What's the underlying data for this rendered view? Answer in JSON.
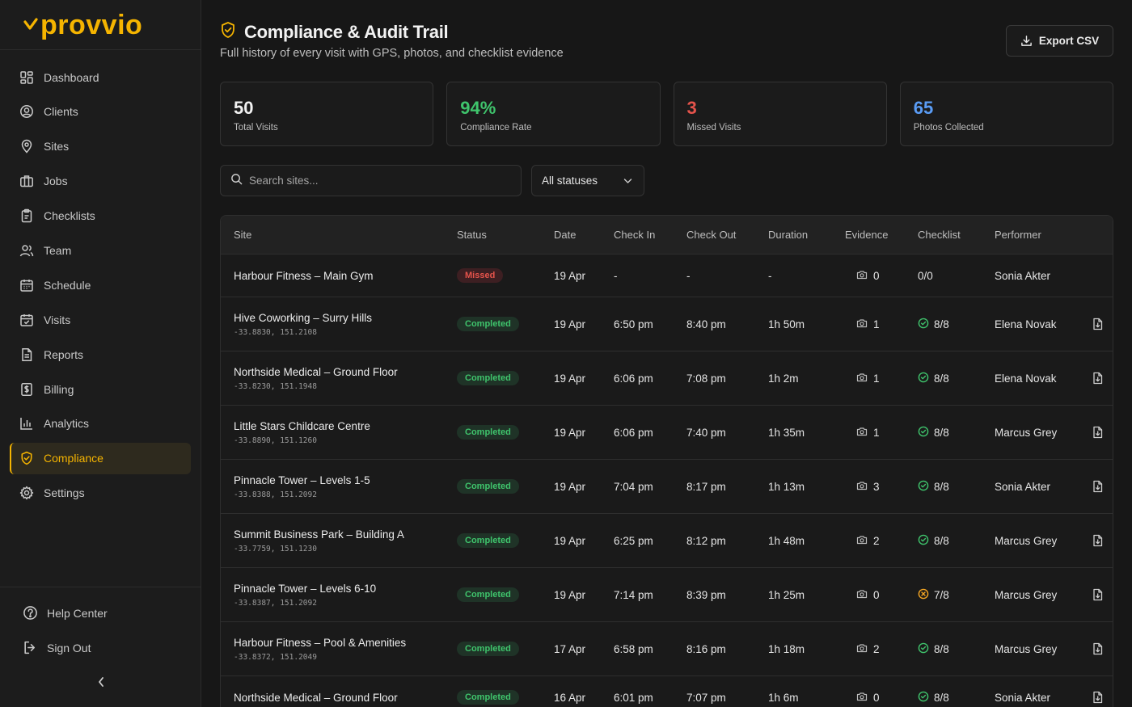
{
  "brand": {
    "name": "provvio",
    "color": "#f5b400"
  },
  "sidebar": {
    "items": [
      {
        "label": "Dashboard",
        "icon": "dashboard-icon"
      },
      {
        "label": "Clients",
        "icon": "user-circle-icon"
      },
      {
        "label": "Sites",
        "icon": "map-pin-icon"
      },
      {
        "label": "Jobs",
        "icon": "briefcase-icon"
      },
      {
        "label": "Checklists",
        "icon": "clipboard-icon"
      },
      {
        "label": "Team",
        "icon": "users-icon"
      },
      {
        "label": "Schedule",
        "icon": "calendar-icon"
      },
      {
        "label": "Visits",
        "icon": "calendar-check-icon"
      },
      {
        "label": "Reports",
        "icon": "file-text-icon"
      },
      {
        "label": "Billing",
        "icon": "dollar-file-icon"
      },
      {
        "label": "Analytics",
        "icon": "bar-chart-icon"
      },
      {
        "label": "Compliance",
        "icon": "shield-check-icon",
        "active": true
      },
      {
        "label": "Settings",
        "icon": "gear-icon"
      }
    ],
    "bottom": [
      {
        "label": "Help Center",
        "icon": "help-circle-icon"
      },
      {
        "label": "Sign Out",
        "icon": "sign-out-icon"
      }
    ]
  },
  "header": {
    "title": "Compliance & Audit Trail",
    "subtitle": "Full history of every visit with GPS, photos, and checklist evidence",
    "export_label": "Export CSV"
  },
  "stats": [
    {
      "value": "50",
      "label": "Total Visits",
      "color": "#f2f2f2"
    },
    {
      "value": "94%",
      "label": "Compliance Rate",
      "color": "#3fc46c"
    },
    {
      "value": "3",
      "label": "Missed Visits",
      "color": "#e5534b"
    },
    {
      "value": "65",
      "label": "Photos Collected",
      "color": "#5a9cf5"
    }
  ],
  "filters": {
    "search_placeholder": "Search sites...",
    "status_selected": "All statuses"
  },
  "table": {
    "columns": [
      "Site",
      "Status",
      "Date",
      "Check In",
      "Check Out",
      "Duration",
      "Evidence",
      "Checklist",
      "Performer"
    ],
    "rows": [
      {
        "site": "Harbour Fitness – Main Gym",
        "coords": "",
        "status": "Missed",
        "date": "19 Apr",
        "check_in": "-",
        "check_out": "-",
        "duration": "-",
        "photos": "0",
        "checklist": "0/0",
        "checklist_state": "none",
        "performer": "Sonia Akter",
        "has_report": false
      },
      {
        "site": "Hive Coworking – Surry Hills",
        "coords": "-33.8830, 151.2108",
        "status": "Completed",
        "date": "19 Apr",
        "check_in": "6:50 pm",
        "check_out": "8:40 pm",
        "duration": "1h 50m",
        "photos": "1",
        "checklist": "8/8",
        "checklist_state": "complete",
        "performer": "Elena Novak",
        "has_report": true
      },
      {
        "site": "Northside Medical – Ground Floor",
        "coords": "-33.8230, 151.1948",
        "status": "Completed",
        "date": "19 Apr",
        "check_in": "6:06 pm",
        "check_out": "7:08 pm",
        "duration": "1h 2m",
        "photos": "1",
        "checklist": "8/8",
        "checklist_state": "complete",
        "performer": "Elena Novak",
        "has_report": true
      },
      {
        "site": "Little Stars Childcare Centre",
        "coords": "-33.8890, 151.1260",
        "status": "Completed",
        "date": "19 Apr",
        "check_in": "6:06 pm",
        "check_out": "7:40 pm",
        "duration": "1h 35m",
        "photos": "1",
        "checklist": "8/8",
        "checklist_state": "complete",
        "performer": "Marcus Grey",
        "has_report": true
      },
      {
        "site": "Pinnacle Tower – Levels 1-5",
        "coords": "-33.8388, 151.2092",
        "status": "Completed",
        "date": "19 Apr",
        "check_in": "7:04 pm",
        "check_out": "8:17 pm",
        "duration": "1h 13m",
        "photos": "3",
        "checklist": "8/8",
        "checklist_state": "complete",
        "performer": "Sonia Akter",
        "has_report": true
      },
      {
        "site": "Summit Business Park – Building A",
        "coords": "-33.7759, 151.1230",
        "status": "Completed",
        "date": "19 Apr",
        "check_in": "6:25 pm",
        "check_out": "8:12 pm",
        "duration": "1h 48m",
        "photos": "2",
        "checklist": "8/8",
        "checklist_state": "complete",
        "performer": "Marcus Grey",
        "has_report": true
      },
      {
        "site": "Pinnacle Tower – Levels 6-10",
        "coords": "-33.8387, 151.2092",
        "status": "Completed",
        "date": "19 Apr",
        "check_in": "7:14 pm",
        "check_out": "8:39 pm",
        "duration": "1h 25m",
        "photos": "0",
        "checklist": "7/8",
        "checklist_state": "partial",
        "performer": "Marcus Grey",
        "has_report": true
      },
      {
        "site": "Harbour Fitness – Pool & Amenities",
        "coords": "-33.8372, 151.2049",
        "status": "Completed",
        "date": "17 Apr",
        "check_in": "6:58 pm",
        "check_out": "8:16 pm",
        "duration": "1h 18m",
        "photos": "2",
        "checklist": "8/8",
        "checklist_state": "complete",
        "performer": "Marcus Grey",
        "has_report": true
      },
      {
        "site": "Northside Medical – Ground Floor",
        "coords": "",
        "status": "Completed",
        "date": "16 Apr",
        "check_in": "6:01 pm",
        "check_out": "7:07 pm",
        "duration": "1h 6m",
        "photos": "0",
        "checklist": "8/8",
        "checklist_state": "complete",
        "performer": "Sonia Akter",
        "has_report": true
      }
    ]
  }
}
